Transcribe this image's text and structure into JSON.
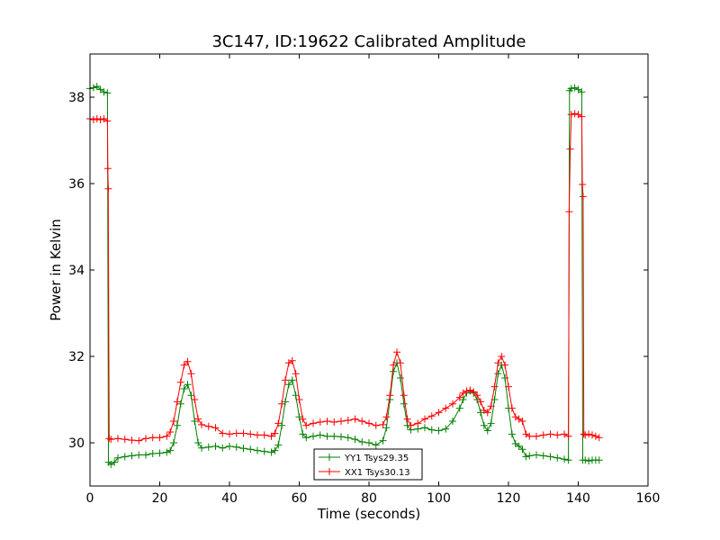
{
  "chart_data": {
    "type": "line",
    "title": "3C147, ID:19622 Calibrated Amplitude",
    "xlabel": "Time (seconds)",
    "ylabel": "Power in Kelvin",
    "xlim": [
      0,
      160
    ],
    "ylim": [
      29,
      39
    ],
    "xticks": [
      0,
      20,
      40,
      60,
      80,
      100,
      120,
      140,
      160
    ],
    "yticks": [
      30,
      32,
      34,
      36,
      38
    ],
    "grid": false,
    "legend_position": "bottom-center",
    "series": [
      {
        "name": "YY1 Tsys29.35",
        "color": "#008000",
        "marker": "+",
        "points": [
          [
            0,
            38.2
          ],
          [
            1,
            38.22
          ],
          [
            2,
            38.25
          ],
          [
            3,
            38.18
          ],
          [
            4,
            38.12
          ],
          [
            5,
            38.1
          ],
          [
            5.3,
            29.55
          ],
          [
            6,
            29.5
          ],
          [
            7,
            29.55
          ],
          [
            8,
            29.65
          ],
          [
            10,
            29.68
          ],
          [
            12,
            29.7
          ],
          [
            14,
            29.72
          ],
          [
            16,
            29.72
          ],
          [
            18,
            29.75
          ],
          [
            20,
            29.76
          ],
          [
            22,
            29.78
          ],
          [
            23,
            29.82
          ],
          [
            24,
            30.0
          ],
          [
            25,
            30.4
          ],
          [
            26,
            30.9
          ],
          [
            27,
            31.25
          ],
          [
            28,
            31.35
          ],
          [
            29,
            31.1
          ],
          [
            30,
            30.5
          ],
          [
            31,
            30.0
          ],
          [
            32,
            29.88
          ],
          [
            34,
            29.9
          ],
          [
            36,
            29.92
          ],
          [
            38,
            29.88
          ],
          [
            40,
            29.92
          ],
          [
            42,
            29.9
          ],
          [
            44,
            29.87
          ],
          [
            46,
            29.85
          ],
          [
            48,
            29.82
          ],
          [
            50,
            29.8
          ],
          [
            52,
            29.78
          ],
          [
            53,
            29.82
          ],
          [
            54,
            29.95
          ],
          [
            55,
            30.4
          ],
          [
            56,
            30.95
          ],
          [
            57,
            31.35
          ],
          [
            58,
            31.45
          ],
          [
            59,
            31.1
          ],
          [
            60,
            30.6
          ],
          [
            61,
            30.2
          ],
          [
            62,
            30.12
          ],
          [
            64,
            30.15
          ],
          [
            66,
            30.18
          ],
          [
            68,
            30.15
          ],
          [
            70,
            30.15
          ],
          [
            72,
            30.14
          ],
          [
            74,
            30.12
          ],
          [
            76,
            30.08
          ],
          [
            78,
            30.02
          ],
          [
            80,
            30.0
          ],
          [
            82,
            29.95
          ],
          [
            84,
            30.05
          ],
          [
            85,
            30.35
          ],
          [
            86,
            31.0
          ],
          [
            87,
            31.65
          ],
          [
            88,
            31.85
          ],
          [
            89,
            31.5
          ],
          [
            90,
            30.9
          ],
          [
            91,
            30.4
          ],
          [
            92,
            30.3
          ],
          [
            94,
            30.32
          ],
          [
            96,
            30.35
          ],
          [
            98,
            30.3
          ],
          [
            100,
            30.28
          ],
          [
            102,
            30.32
          ],
          [
            104,
            30.5
          ],
          [
            106,
            30.8
          ],
          [
            107,
            31.0
          ],
          [
            108,
            31.15
          ],
          [
            109,
            31.2
          ],
          [
            110,
            31.15
          ],
          [
            111,
            31.0
          ],
          [
            112,
            30.7
          ],
          [
            113,
            30.4
          ],
          [
            114,
            30.28
          ],
          [
            115,
            30.45
          ],
          [
            116,
            31.0
          ],
          [
            117,
            31.6
          ],
          [
            118,
            31.8
          ],
          [
            119,
            31.5
          ],
          [
            120,
            30.8
          ],
          [
            121,
            30.2
          ],
          [
            122,
            29.98
          ],
          [
            123,
            29.92
          ],
          [
            124,
            29.85
          ],
          [
            125,
            29.68
          ],
          [
            126,
            29.7
          ],
          [
            128,
            29.72
          ],
          [
            130,
            29.7
          ],
          [
            132,
            29.68
          ],
          [
            134,
            29.65
          ],
          [
            136,
            29.62
          ],
          [
            137.2,
            29.6
          ],
          [
            137.5,
            38.15
          ],
          [
            138,
            38.2
          ],
          [
            139,
            38.22
          ],
          [
            140,
            38.18
          ],
          [
            141,
            38.12
          ],
          [
            141.3,
            29.6
          ],
          [
            142,
            29.6
          ],
          [
            143,
            29.58
          ],
          [
            144,
            29.6
          ],
          [
            145,
            29.6
          ],
          [
            146,
            29.6
          ]
        ]
      },
      {
        "name": "XX1 Tsys30.13",
        "color": "#ff0000",
        "marker": "+",
        "points": [
          [
            0,
            37.5
          ],
          [
            1,
            37.48
          ],
          [
            2,
            37.5
          ],
          [
            3,
            37.48
          ],
          [
            4,
            37.5
          ],
          [
            5,
            37.45
          ],
          [
            5.1,
            36.35
          ],
          [
            5.25,
            35.88
          ],
          [
            5.5,
            30.1
          ],
          [
            6,
            30.08
          ],
          [
            8,
            30.1
          ],
          [
            10,
            30.08
          ],
          [
            12,
            30.06
          ],
          [
            14,
            30.05
          ],
          [
            16,
            30.1
          ],
          [
            18,
            30.12
          ],
          [
            20,
            30.12
          ],
          [
            22,
            30.15
          ],
          [
            23,
            30.25
          ],
          [
            24,
            30.5
          ],
          [
            25,
            30.95
          ],
          [
            26,
            31.4
          ],
          [
            27,
            31.8
          ],
          [
            28,
            31.88
          ],
          [
            29,
            31.6
          ],
          [
            30,
            31.0
          ],
          [
            31,
            30.55
          ],
          [
            32,
            30.42
          ],
          [
            34,
            30.38
          ],
          [
            36,
            30.35
          ],
          [
            38,
            30.22
          ],
          [
            40,
            30.2
          ],
          [
            42,
            30.22
          ],
          [
            44,
            30.22
          ],
          [
            46,
            30.2
          ],
          [
            48,
            30.18
          ],
          [
            50,
            30.18
          ],
          [
            52,
            30.15
          ],
          [
            53,
            30.22
          ],
          [
            54,
            30.45
          ],
          [
            55,
            30.9
          ],
          [
            56,
            31.45
          ],
          [
            57,
            31.85
          ],
          [
            58,
            31.9
          ],
          [
            59,
            31.6
          ],
          [
            60,
            31.0
          ],
          [
            61,
            30.55
          ],
          [
            62,
            30.4
          ],
          [
            64,
            30.45
          ],
          [
            66,
            30.48
          ],
          [
            68,
            30.5
          ],
          [
            70,
            30.48
          ],
          [
            72,
            30.5
          ],
          [
            74,
            30.52
          ],
          [
            76,
            30.55
          ],
          [
            78,
            30.5
          ],
          [
            80,
            30.45
          ],
          [
            82,
            30.4
          ],
          [
            84,
            30.42
          ],
          [
            85,
            30.6
          ],
          [
            86,
            31.1
          ],
          [
            87,
            31.8
          ],
          [
            88,
            32.1
          ],
          [
            89,
            31.85
          ],
          [
            90,
            31.1
          ],
          [
            91,
            30.55
          ],
          [
            92,
            30.4
          ],
          [
            94,
            30.45
          ],
          [
            96,
            30.55
          ],
          [
            98,
            30.62
          ],
          [
            100,
            30.7
          ],
          [
            102,
            30.8
          ],
          [
            104,
            30.9
          ],
          [
            106,
            31.05
          ],
          [
            107,
            31.15
          ],
          [
            108,
            31.2
          ],
          [
            109,
            31.22
          ],
          [
            110,
            31.18
          ],
          [
            111,
            31.1
          ],
          [
            112,
            30.95
          ],
          [
            113,
            30.75
          ],
          [
            114,
            30.7
          ],
          [
            115,
            30.85
          ],
          [
            116,
            31.3
          ],
          [
            117,
            31.85
          ],
          [
            118,
            32.0
          ],
          [
            119,
            31.8
          ],
          [
            120,
            31.3
          ],
          [
            121,
            30.8
          ],
          [
            122,
            30.6
          ],
          [
            123,
            30.55
          ],
          [
            124,
            30.5
          ],
          [
            125,
            30.2
          ],
          [
            126,
            30.15
          ],
          [
            128,
            30.15
          ],
          [
            130,
            30.18
          ],
          [
            132,
            30.2
          ],
          [
            134,
            30.18
          ],
          [
            136,
            30.2
          ],
          [
            137.2,
            30.15
          ],
          [
            137.4,
            35.35
          ],
          [
            137.7,
            36.8
          ],
          [
            138,
            37.6
          ],
          [
            139,
            37.62
          ],
          [
            140,
            37.6
          ],
          [
            141,
            37.55
          ],
          [
            141.2,
            35.98
          ],
          [
            141.4,
            35.7
          ],
          [
            141.6,
            30.2
          ],
          [
            142,
            30.18
          ],
          [
            143,
            30.2
          ],
          [
            144,
            30.18
          ],
          [
            145,
            30.15
          ],
          [
            146,
            30.12
          ]
        ]
      }
    ]
  }
}
